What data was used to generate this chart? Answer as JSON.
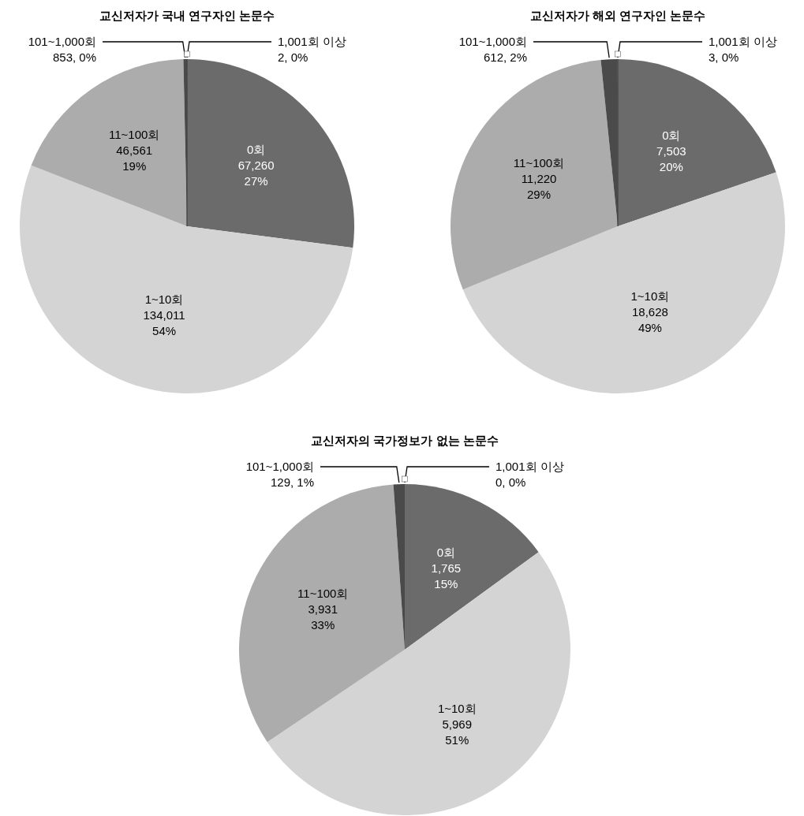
{
  "chart_data": [
    {
      "type": "pie",
      "title": "교신저자가 국내 연구자인 논문수",
      "categories": [
        "0회",
        "1~10회",
        "11~100회",
        "101~1,000회",
        "1,001회 이상"
      ],
      "values": [
        67260,
        134011,
        46561,
        853,
        2
      ],
      "colors": [
        "#6b6b6b",
        "#d4d4d4",
        "#acacac",
        "#4a4a4a",
        "#ffffff"
      ],
      "value_labels": [
        "67,260\n27%",
        "134,011\n54%",
        "46,561\n19%",
        "853, 0%",
        "2, 0%"
      ]
    },
    {
      "type": "pie",
      "title": "교신저자가 해외 연구자인 논문수",
      "categories": [
        "0회",
        "1~10회",
        "11~100회",
        "101~1,000회",
        "1,001회 이상"
      ],
      "values": [
        7503,
        18628,
        11220,
        612,
        3
      ],
      "colors": [
        "#6b6b6b",
        "#d4d4d4",
        "#acacac",
        "#4a4a4a",
        "#ffffff"
      ],
      "value_labels": [
        "7,503\n20%",
        "18,628\n49%",
        "11,220\n29%",
        "612, 2%",
        "3, 0%"
      ]
    },
    {
      "type": "pie",
      "title": "교신저자의 국가정보가 없는 논문수",
      "categories": [
        "0회",
        "1~10회",
        "11~100회",
        "101~1,000회",
        "1,001회 이상"
      ],
      "values": [
        1765,
        5969,
        3931,
        129,
        0
      ],
      "colors": [
        "#6b6b6b",
        "#d4d4d4",
        "#acacac",
        "#4a4a4a",
        "#ffffff"
      ],
      "value_labels": [
        "1,765\n15%",
        "5,969\n51%",
        "3,931\n33%",
        "129, 1%",
        "0, 0%"
      ]
    }
  ]
}
